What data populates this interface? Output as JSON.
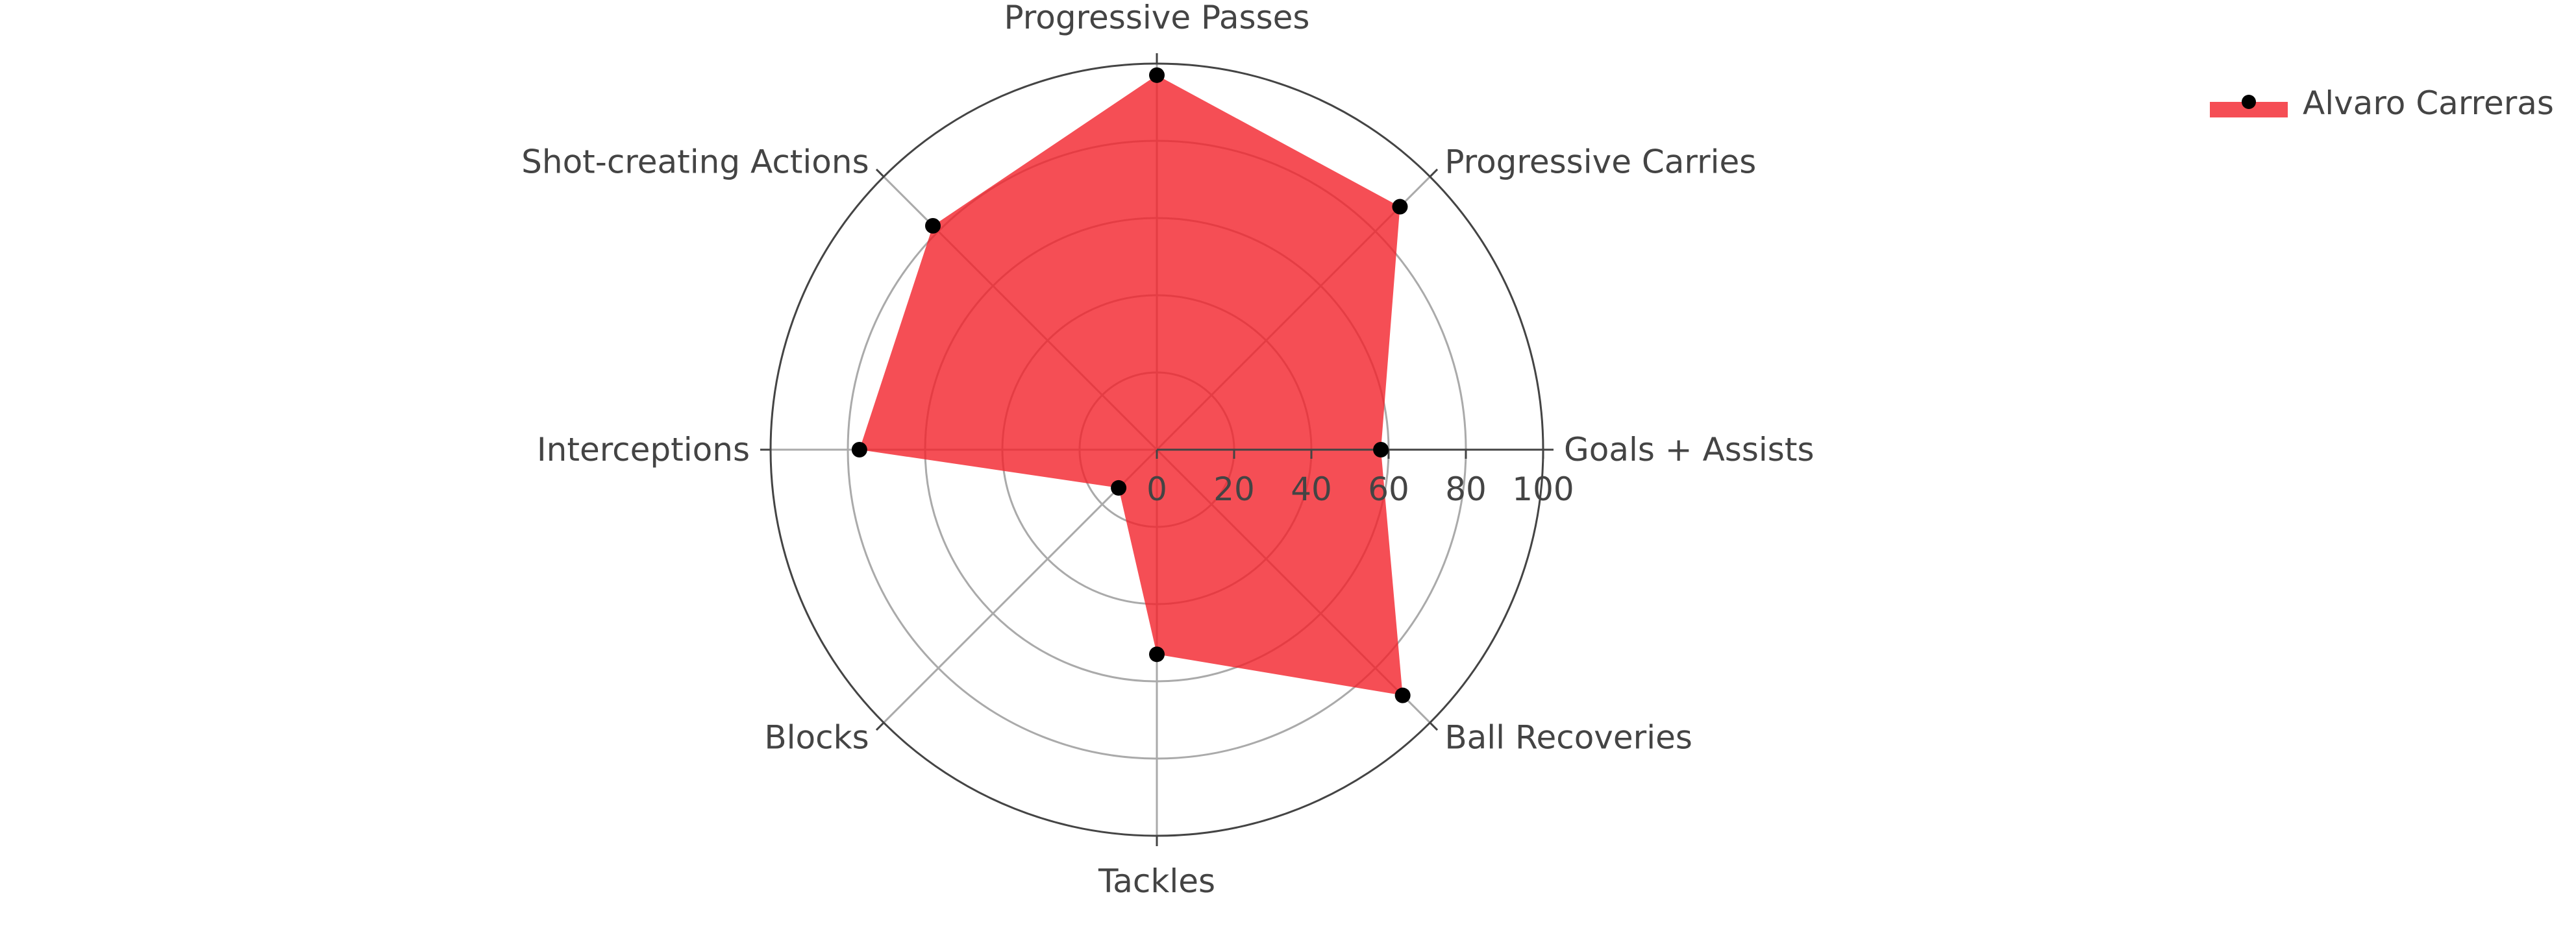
{
  "chart_data": {
    "type": "radar",
    "axes": [
      "Goals + Assists",
      "Progressive Carries",
      "Progressive Passes",
      "Shot-creating Actions",
      "Interceptions",
      "Blocks",
      "Tackles",
      "Ball Recoveries"
    ],
    "series": [
      {
        "name": "Alvaro Carreras",
        "values": [
          58,
          89,
          97,
          82,
          77,
          14,
          53,
          90
        ]
      }
    ],
    "radial_range": [
      0,
      100
    ],
    "radial_ticks": [
      "0",
      "20",
      "40",
      "60",
      "80",
      "100"
    ],
    "legend_position": "top-right",
    "grid": true,
    "colors": {
      "fill": "#f2222a",
      "marker": "#000000",
      "grid": "#aaaaaa",
      "outer_ring": "#444444"
    }
  }
}
